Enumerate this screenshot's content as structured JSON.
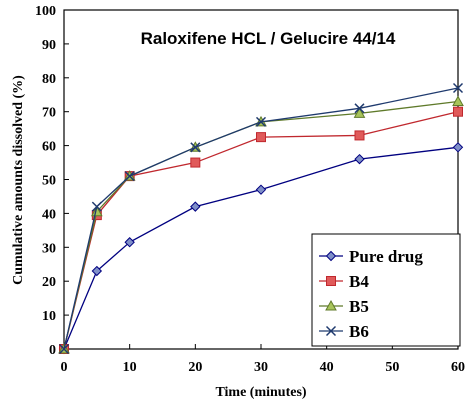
{
  "chart_data": {
    "type": "line",
    "title": "Raloxifene HCL / Gelucire 44/14",
    "xlabel": "Time (minutes)",
    "ylabel": "Cumulative amounts dissolved (%)",
    "xlim": [
      0,
      60
    ],
    "ylim": [
      0,
      100
    ],
    "x_ticks": [
      0,
      10,
      20,
      30,
      40,
      50,
      60
    ],
    "y_ticks": [
      0,
      10,
      20,
      30,
      40,
      50,
      60,
      70,
      80,
      90,
      100
    ],
    "x": [
      0,
      5,
      10,
      20,
      30,
      45,
      60
    ],
    "grid": false,
    "legend_position": "bottom-right",
    "series": [
      {
        "name": "Pure drug",
        "marker": "diamond",
        "color": "#000080",
        "fill": "#7f8fc8",
        "values": [
          0,
          23,
          31.5,
          42,
          47,
          56,
          59.5
        ]
      },
      {
        "name": "B4",
        "marker": "square",
        "color": "#c0282e",
        "fill": "#e05a5a",
        "values": [
          0,
          39.5,
          51,
          55,
          62.5,
          63,
          70
        ]
      },
      {
        "name": "B5",
        "marker": "triangle",
        "color": "#5f7a2a",
        "fill": "#a8c45a",
        "values": [
          0,
          40.5,
          51,
          59.5,
          67,
          69.5,
          73
        ]
      },
      {
        "name": "B6",
        "marker": "x",
        "color": "#1f3a6e",
        "fill": "#1f3a6e",
        "values": [
          0,
          42,
          51,
          59.5,
          67,
          71,
          77
        ]
      }
    ]
  }
}
